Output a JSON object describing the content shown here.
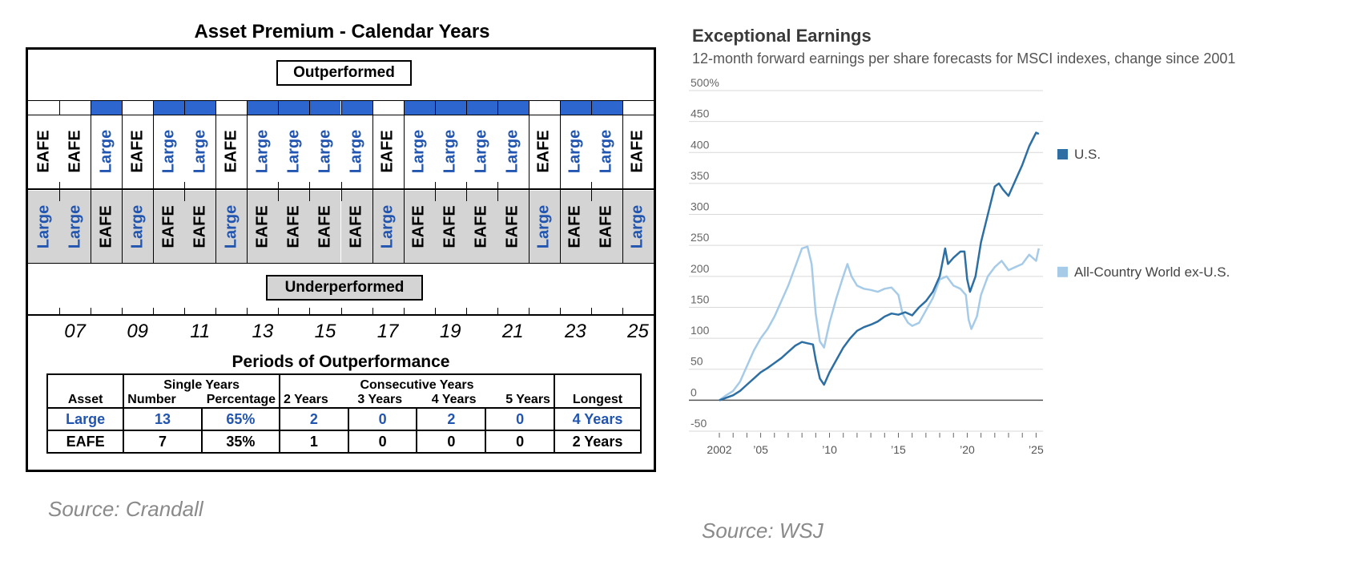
{
  "left_panel": {
    "title": "Asset Premium - Calendar Years",
    "outperformed_label": "Outperformed",
    "underperformed_label": "Underperformed",
    "columns": [
      {
        "year": "2006",
        "top": "EAFE",
        "bottom": "Large"
      },
      {
        "year": "2007",
        "top": "EAFE",
        "bottom": "Large"
      },
      {
        "year": "2008",
        "top": "Large",
        "bottom": "EAFE"
      },
      {
        "year": "2009",
        "top": "EAFE",
        "bottom": "Large"
      },
      {
        "year": "2010",
        "top": "Large",
        "bottom": "EAFE"
      },
      {
        "year": "2011",
        "top": "Large",
        "bottom": "EAFE"
      },
      {
        "year": "2012",
        "top": "EAFE",
        "bottom": "Large"
      },
      {
        "year": "2013",
        "top": "Large",
        "bottom": "EAFE"
      },
      {
        "year": "2014",
        "top": "Large",
        "bottom": "EAFE"
      },
      {
        "year": "2015",
        "top": "Large",
        "bottom": "EAFE"
      },
      {
        "year": "2016",
        "top": "Large",
        "bottom": "EAFE"
      },
      {
        "year": "2017",
        "top": "EAFE",
        "bottom": "Large"
      },
      {
        "year": "2018",
        "top": "Large",
        "bottom": "EAFE"
      },
      {
        "year": "2019",
        "top": "Large",
        "bottom": "EAFE"
      },
      {
        "year": "2020",
        "top": "Large",
        "bottom": "EAFE"
      },
      {
        "year": "2021",
        "top": "Large",
        "bottom": "EAFE"
      },
      {
        "year": "2022",
        "top": "EAFE",
        "bottom": "Large"
      },
      {
        "year": "2023",
        "top": "Large",
        "bottom": "EAFE"
      },
      {
        "year": "2024",
        "top": "Large",
        "bottom": "EAFE"
      },
      {
        "year": "2025",
        "top": "EAFE",
        "bottom": "Large"
      }
    ],
    "year_labels": [
      "07",
      "09",
      "11",
      "13",
      "15",
      "17",
      "19",
      "21",
      "23",
      "25"
    ],
    "table": {
      "title": "Periods of Outperformance",
      "group_single": "Single Years",
      "group_consecutive": "Consecutive Years",
      "headers": [
        "Asset",
        "Number",
        "Percentage",
        "2 Years",
        "3 Years",
        "4 Years",
        "5 Years",
        "Longest"
      ],
      "rows": [
        [
          "Large",
          "13",
          "65%",
          "2",
          "0",
          "2",
          "0",
          "4 Years"
        ],
        [
          "EAFE",
          "7",
          "35%",
          "1",
          "0",
          "0",
          "0",
          "2 Years"
        ]
      ]
    },
    "source": "Source: Crandall",
    "colors": {
      "large": "#2155b0",
      "eafe": "#000000",
      "flag": "#2e66d0",
      "under_fill": "#d4d4d4"
    }
  },
  "right_panel": {
    "title": "Exceptional Earnings",
    "subtitle": "12-month forward earnings per share forecasts for MSCI indexes, change since 2001",
    "source": "Source: WSJ"
  },
  "chart_data": {
    "type": "line",
    "y_ticks": [
      "500%",
      "450",
      "400",
      "350",
      "300",
      "250",
      "200",
      "150",
      "100",
      "50",
      "0",
      "-50"
    ],
    "x_ticks": [
      "2002",
      "’05",
      "’10",
      "’15",
      "’20",
      "’25"
    ],
    "ylim": [
      -50,
      500
    ],
    "xlim": [
      2002,
      2025.5
    ],
    "grid": true,
    "legend_placement": "right",
    "series": [
      {
        "name": "U.S.",
        "color": "#2d6fa3",
        "points": [
          [
            2002,
            0
          ],
          [
            2002.5,
            4
          ],
          [
            2003,
            8
          ],
          [
            2003.5,
            15
          ],
          [
            2004,
            25
          ],
          [
            2004.5,
            35
          ],
          [
            2005,
            45
          ],
          [
            2005.5,
            52
          ],
          [
            2006,
            60
          ],
          [
            2006.5,
            68
          ],
          [
            2007,
            78
          ],
          [
            2007.5,
            88
          ],
          [
            2008,
            94
          ],
          [
            2008.4,
            92
          ],
          [
            2008.8,
            90
          ],
          [
            2009.0,
            65
          ],
          [
            2009.3,
            35
          ],
          [
            2009.6,
            25
          ],
          [
            2010,
            45
          ],
          [
            2010.5,
            65
          ],
          [
            2011,
            85
          ],
          [
            2011.5,
            100
          ],
          [
            2012,
            112
          ],
          [
            2012.5,
            118
          ],
          [
            2013,
            122
          ],
          [
            2013.5,
            127
          ],
          [
            2014,
            135
          ],
          [
            2014.5,
            140
          ],
          [
            2015,
            138
          ],
          [
            2015.5,
            142
          ],
          [
            2016,
            137
          ],
          [
            2016.5,
            150
          ],
          [
            2017,
            160
          ],
          [
            2017.5,
            175
          ],
          [
            2018,
            200
          ],
          [
            2018.4,
            245
          ],
          [
            2018.6,
            220
          ],
          [
            2019,
            230
          ],
          [
            2019.5,
            240
          ],
          [
            2019.8,
            240
          ],
          [
            2020.0,
            195
          ],
          [
            2020.2,
            175
          ],
          [
            2020.6,
            200
          ],
          [
            2021,
            255
          ],
          [
            2021.5,
            300
          ],
          [
            2022,
            345
          ],
          [
            2022.3,
            350
          ],
          [
            2022.6,
            340
          ],
          [
            2023,
            330
          ],
          [
            2023.5,
            355
          ],
          [
            2024,
            380
          ],
          [
            2024.5,
            410
          ],
          [
            2025,
            432
          ],
          [
            2025.2,
            430
          ]
        ]
      },
      {
        "name": "All-Country World ex-U.S.",
        "color": "#a6cbe8",
        "points": [
          [
            2002,
            0
          ],
          [
            2002.5,
            8
          ],
          [
            2003,
            15
          ],
          [
            2003.5,
            30
          ],
          [
            2004,
            55
          ],
          [
            2004.5,
            80
          ],
          [
            2005,
            100
          ],
          [
            2005.5,
            115
          ],
          [
            2006,
            135
          ],
          [
            2006.5,
            160
          ],
          [
            2007,
            185
          ],
          [
            2007.5,
            215
          ],
          [
            2008,
            245
          ],
          [
            2008.4,
            248
          ],
          [
            2008.7,
            220
          ],
          [
            2009.0,
            140
          ],
          [
            2009.3,
            95
          ],
          [
            2009.6,
            85
          ],
          [
            2010,
            125
          ],
          [
            2010.5,
            165
          ],
          [
            2011,
            200
          ],
          [
            2011.3,
            220
          ],
          [
            2011.6,
            200
          ],
          [
            2012,
            185
          ],
          [
            2012.5,
            180
          ],
          [
            2013,
            178
          ],
          [
            2013.5,
            175
          ],
          [
            2014,
            180
          ],
          [
            2014.5,
            182
          ],
          [
            2015,
            170
          ],
          [
            2015.3,
            140
          ],
          [
            2015.7,
            125
          ],
          [
            2016,
            120
          ],
          [
            2016.5,
            125
          ],
          [
            2017,
            145
          ],
          [
            2017.5,
            165
          ],
          [
            2018,
            195
          ],
          [
            2018.5,
            200
          ],
          [
            2019,
            185
          ],
          [
            2019.5,
            180
          ],
          [
            2019.9,
            170
          ],
          [
            2020.1,
            130
          ],
          [
            2020.3,
            115
          ],
          [
            2020.7,
            135
          ],
          [
            2021,
            170
          ],
          [
            2021.5,
            200
          ],
          [
            2022,
            215
          ],
          [
            2022.5,
            225
          ],
          [
            2023,
            210
          ],
          [
            2023.5,
            215
          ],
          [
            2024,
            220
          ],
          [
            2024.5,
            235
          ],
          [
            2025,
            225
          ],
          [
            2025.2,
            245
          ]
        ]
      }
    ]
  }
}
